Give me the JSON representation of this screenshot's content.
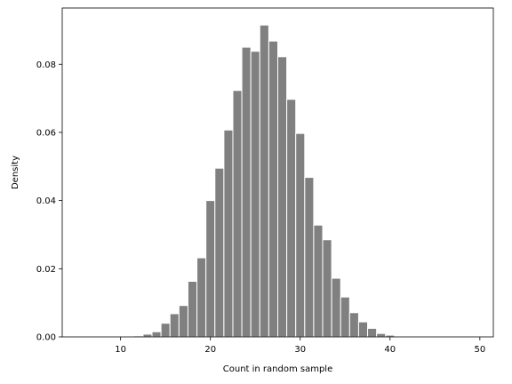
{
  "chart_data": {
    "type": "bar",
    "title": "",
    "xlabel": "Count in random sample",
    "ylabel": "Density",
    "xlim": [
      3.5,
      51.5
    ],
    "ylim": [
      0,
      0.0965
    ],
    "grid": false,
    "x_ticks": [
      10,
      20,
      30,
      40,
      50
    ],
    "y_ticks": [
      0.0,
      0.02,
      0.04,
      0.06,
      0.08
    ],
    "y_tick_labels": [
      "0.00",
      "0.02",
      "0.04",
      "0.06",
      "0.08"
    ],
    "bin_width": 1,
    "x": [
      11,
      12,
      13,
      14,
      15,
      16,
      17,
      18,
      19,
      20,
      21,
      22,
      23,
      24,
      25,
      26,
      27,
      28,
      29,
      30,
      31,
      32,
      33,
      34,
      35,
      36,
      37,
      38,
      39,
      40,
      41
    ],
    "values": [
      0.0002,
      0.0003,
      0.0008,
      0.0015,
      0.004,
      0.0068,
      0.0092,
      0.0163,
      0.0232,
      0.04,
      0.0495,
      0.0607,
      0.0723,
      0.085,
      0.0838,
      0.0915,
      0.0868,
      0.0822,
      0.0697,
      0.0597,
      0.0468,
      0.0328,
      0.0285,
      0.0172,
      0.0117,
      0.0071,
      0.0044,
      0.0025,
      0.001,
      0.0005,
      0.0001
    ]
  }
}
